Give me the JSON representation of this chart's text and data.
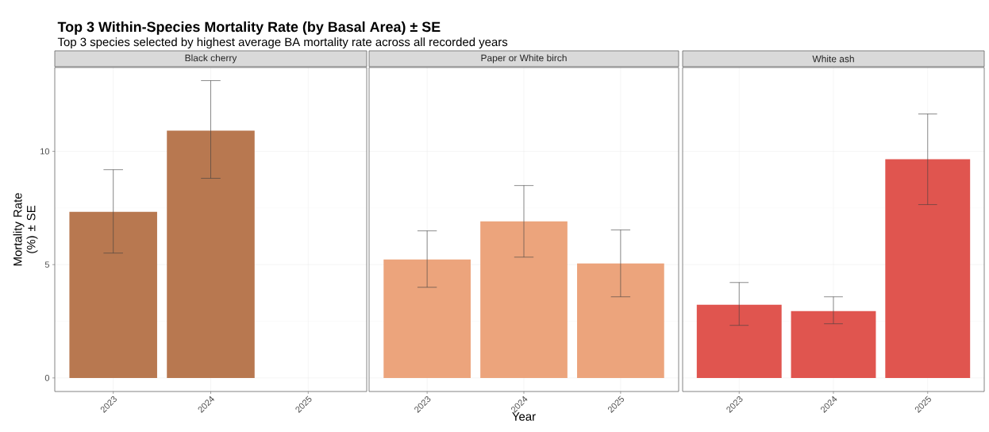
{
  "chart_data": [
    {
      "type": "bar",
      "title": "Black cherry",
      "annotations": [
        "Top 3 Within-Species Mortality Rate (by Basal Area) ± SE",
        "Top 3 species selected by highest average BA mortality rate across all recorded years"
      ],
      "ylabel": "Mortality Rate (%) ± SE",
      "categories": [
        "2023",
        "2024",
        "2025"
      ],
      "values": [
        7.33,
        10.91,
        null
      ],
      "errors": [
        [
          5.51,
          9.19
        ],
        [
          8.81,
          13.12
        ],
        null
      ],
      "color": "#b87850",
      "ylim": [
        -0.6,
        13.7
      ],
      "yticks": [
        0,
        5,
        10
      ],
      "grid": true
    },
    {
      "type": "bar",
      "title": "Paper or White birch",
      "xlabel": "Year",
      "categories": [
        "2023",
        "2024",
        "2025"
      ],
      "values": [
        5.23,
        6.91,
        5.05
      ],
      "errors": [
        [
          4.0,
          6.49
        ],
        [
          5.33,
          8.49
        ],
        [
          3.58,
          6.53
        ]
      ],
      "color": "#eca47c",
      "ylim": [
        -0.6,
        13.7
      ],
      "yticks": [
        0,
        5,
        10
      ],
      "grid": true,
      "tick_labels": "x"
    },
    {
      "type": "bar",
      "title": "White ash",
      "categories": [
        "2023",
        "2024",
        "2025"
      ],
      "values": [
        3.23,
        2.95,
        9.65
      ],
      "errors": [
        [
          2.32,
          4.21
        ],
        [
          2.39,
          3.58
        ],
        [
          7.65,
          11.65
        ]
      ],
      "color": "#e0554f",
      "ylim": [
        -0.6,
        13.7
      ],
      "yticks": [
        0,
        5,
        10
      ],
      "grid": true,
      "tick_labels": "x"
    }
  ]
}
